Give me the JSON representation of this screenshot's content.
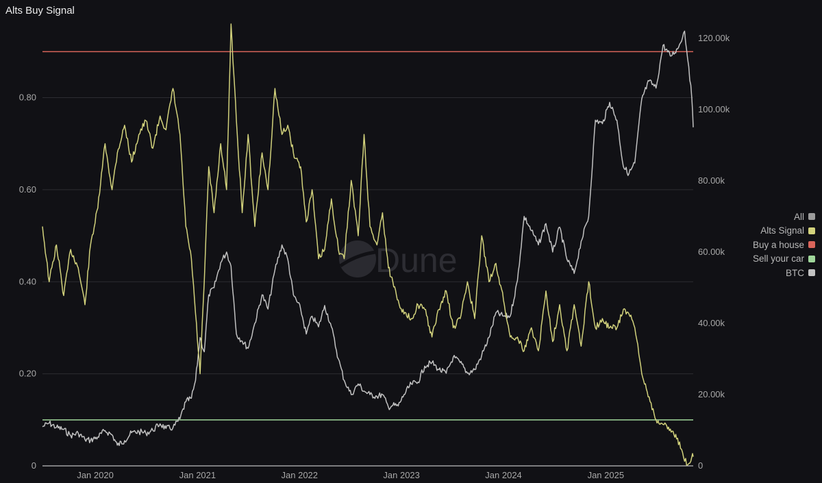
{
  "title": "Alts Buy Signal",
  "colors": {
    "background": "#111115",
    "alts_signal": "#d2d27c",
    "btc": "#c2c2c2",
    "buy_a_house": "#d9645a",
    "sell_your_car": "#9fd69a",
    "all": "#9c9c9c",
    "grid": "#2c2c31"
  },
  "watermark": "Dune",
  "legend": [
    {
      "label": "All",
      "color": "#9c9c9c"
    },
    {
      "label": "Alts Signal",
      "color": "#d2d27c"
    },
    {
      "label": "Buy a house",
      "color": "#d9645a"
    },
    {
      "label": "Sell your car",
      "color": "#9fd69a"
    },
    {
      "label": "BTC",
      "color": "#c2c2c2"
    }
  ],
  "chart_data": {
    "type": "line",
    "title": "Alts Buy Signal",
    "legend_position": "right",
    "grid": true,
    "x_tick_labels": [
      "Jan 2020",
      "Jan 2021",
      "Jan 2022",
      "Jan 2023",
      "Jan 2024",
      "Jan 2025"
    ],
    "x_range": [
      "2019-06-26",
      "2025-11-10"
    ],
    "y_left": {
      "range": [
        0,
        0.96
      ],
      "ticks": [
        0,
        0.2,
        0.4,
        0.6,
        0.8
      ],
      "tick_labels": [
        "0",
        "0.20",
        "0.40",
        "0.60",
        "0.80"
      ]
    },
    "y_right": {
      "range": [
        0,
        124000
      ],
      "ticks": [
        0,
        20000,
        40000,
        60000,
        80000,
        100000,
        120000
      ],
      "tick_labels": [
        "0",
        "20.00k",
        "40.00k",
        "60.00k",
        "80.00k",
        "100.00k",
        "120.00k"
      ]
    },
    "thresholds": [
      {
        "name": "Buy a house",
        "value": 0.9,
        "axis": "left"
      },
      {
        "name": "Sell your car",
        "value": 0.1,
        "axis": "left"
      }
    ],
    "series": [
      {
        "name": "Alts Signal",
        "axis": "left",
        "x": [
          "2019-06-26",
          "2019-07-20",
          "2019-08-15",
          "2019-09-10",
          "2019-10-05",
          "2019-11-01",
          "2019-11-25",
          "2019-12-15",
          "2020-01-10",
          "2020-02-05",
          "2020-03-01",
          "2020-03-20",
          "2020-04-15",
          "2020-05-10",
          "2020-06-05",
          "2020-06-30",
          "2020-07-25",
          "2020-08-20",
          "2020-09-10",
          "2020-10-05",
          "2020-10-30",
          "2020-11-20",
          "2020-12-10",
          "2020-12-25",
          "2021-01-10",
          "2021-01-25",
          "2021-02-10",
          "2021-03-01",
          "2021-03-25",
          "2021-04-15",
          "2021-05-01",
          "2021-05-20",
          "2021-06-10",
          "2021-07-01",
          "2021-07-25",
          "2021-08-20",
          "2021-09-10",
          "2021-10-05",
          "2021-10-30",
          "2021-11-20",
          "2021-12-10",
          "2022-01-05",
          "2022-01-25",
          "2022-02-15",
          "2022-03-10",
          "2022-04-01",
          "2022-04-25",
          "2022-05-20",
          "2022-06-10",
          "2022-07-05",
          "2022-07-30",
          "2022-08-20",
          "2022-09-10",
          "2022-10-05",
          "2022-10-25",
          "2022-11-15",
          "2022-12-01",
          "2022-12-20",
          "2023-01-10",
          "2023-02-05",
          "2023-03-01",
          "2023-03-25",
          "2023-04-20",
          "2023-05-15",
          "2023-06-10",
          "2023-07-05",
          "2023-07-30",
          "2023-08-25",
          "2023-09-20",
          "2023-10-15",
          "2023-11-10",
          "2023-12-05",
          "2024-01-01",
          "2024-01-25",
          "2024-02-20",
          "2024-03-15",
          "2024-04-10",
          "2024-05-05",
          "2024-06-01",
          "2024-06-25",
          "2024-07-20",
          "2024-08-15",
          "2024-09-10",
          "2024-10-05",
          "2024-11-01",
          "2024-11-25",
          "2024-12-20",
          "2025-01-15",
          "2025-02-10",
          "2025-03-05",
          "2025-03-25",
          "2025-04-15",
          "2025-05-10",
          "2025-06-05",
          "2025-06-30",
          "2025-07-25",
          "2025-08-20",
          "2025-09-15",
          "2025-10-10",
          "2025-10-25",
          "2025-11-05",
          "2025-11-10"
        ],
        "values": [
          0.52,
          0.4,
          0.48,
          0.37,
          0.47,
          0.43,
          0.35,
          0.48,
          0.56,
          0.7,
          0.6,
          0.68,
          0.74,
          0.66,
          0.72,
          0.75,
          0.69,
          0.76,
          0.73,
          0.82,
          0.72,
          0.52,
          0.45,
          0.33,
          0.2,
          0.4,
          0.65,
          0.55,
          0.7,
          0.6,
          0.96,
          0.75,
          0.55,
          0.72,
          0.52,
          0.68,
          0.6,
          0.82,
          0.72,
          0.74,
          0.68,
          0.65,
          0.53,
          0.6,
          0.45,
          0.47,
          0.58,
          0.47,
          0.45,
          0.62,
          0.5,
          0.72,
          0.52,
          0.48,
          0.55,
          0.43,
          0.4,
          0.36,
          0.33,
          0.32,
          0.35,
          0.34,
          0.28,
          0.34,
          0.38,
          0.3,
          0.32,
          0.4,
          0.32,
          0.5,
          0.4,
          0.44,
          0.36,
          0.28,
          0.28,
          0.25,
          0.3,
          0.25,
          0.38,
          0.27,
          0.35,
          0.25,
          0.35,
          0.26,
          0.4,
          0.3,
          0.32,
          0.3,
          0.3,
          0.34,
          0.33,
          0.3,
          0.2,
          0.15,
          0.1,
          0.09,
          0.08,
          0.06,
          0.01,
          0.005,
          0.02,
          0.02
        ]
      },
      {
        "name": "BTC",
        "axis": "right",
        "x": [
          "2019-06-26",
          "2019-07-20",
          "2019-08-15",
          "2019-09-10",
          "2019-10-05",
          "2019-11-01",
          "2019-11-25",
          "2019-12-15",
          "2020-01-10",
          "2020-02-05",
          "2020-03-01",
          "2020-03-20",
          "2020-04-15",
          "2020-05-10",
          "2020-06-05",
          "2020-06-30",
          "2020-07-25",
          "2020-08-20",
          "2020-09-10",
          "2020-10-05",
          "2020-10-30",
          "2020-11-20",
          "2020-12-10",
          "2020-12-25",
          "2021-01-10",
          "2021-01-25",
          "2021-02-10",
          "2021-03-01",
          "2021-03-25",
          "2021-04-15",
          "2021-05-01",
          "2021-05-20",
          "2021-06-10",
          "2021-07-01",
          "2021-07-25",
          "2021-08-20",
          "2021-09-10",
          "2021-10-05",
          "2021-10-30",
          "2021-11-20",
          "2021-12-10",
          "2022-01-05",
          "2022-01-25",
          "2022-02-15",
          "2022-03-10",
          "2022-04-01",
          "2022-04-25",
          "2022-05-20",
          "2022-06-10",
          "2022-07-05",
          "2022-07-30",
          "2022-08-20",
          "2022-09-10",
          "2022-10-05",
          "2022-10-25",
          "2022-11-15",
          "2022-12-01",
          "2022-12-20",
          "2023-01-10",
          "2023-02-05",
          "2023-03-01",
          "2023-03-25",
          "2023-04-20",
          "2023-05-15",
          "2023-06-10",
          "2023-07-05",
          "2023-07-30",
          "2023-08-25",
          "2023-09-20",
          "2023-10-15",
          "2023-11-10",
          "2023-12-05",
          "2024-01-01",
          "2024-01-25",
          "2024-02-20",
          "2024-03-15",
          "2024-04-10",
          "2024-05-05",
          "2024-06-01",
          "2024-06-25",
          "2024-07-20",
          "2024-08-15",
          "2024-09-10",
          "2024-10-05",
          "2024-11-01",
          "2024-11-25",
          "2024-12-20",
          "2025-01-15",
          "2025-02-10",
          "2025-03-05",
          "2025-03-25",
          "2025-04-15",
          "2025-05-10",
          "2025-06-05",
          "2025-06-30",
          "2025-07-25",
          "2025-08-20",
          "2025-09-15",
          "2025-10-10",
          "2025-10-25",
          "2025-11-05",
          "2025-11-10"
        ],
        "values": [
          11000,
          12000,
          10800,
          10200,
          8500,
          9200,
          7400,
          7200,
          8100,
          9900,
          8700,
          5800,
          7100,
          9300,
          9600,
          9200,
          10000,
          11800,
          10500,
          10700,
          13200,
          18000,
          19000,
          24000,
          36000,
          32000,
          48000,
          50000,
          57000,
          60000,
          56000,
          37000,
          35000,
          33000,
          40000,
          48000,
          44000,
          55000,
          62000,
          58000,
          48000,
          44000,
          37000,
          42000,
          39000,
          45000,
          39000,
          30000,
          24000,
          20000,
          23000,
          21000,
          20000,
          19500,
          20000,
          16500,
          17000,
          16800,
          20000,
          23000,
          23500,
          28000,
          29000,
          27000,
          26000,
          30500,
          29000,
          26000,
          27000,
          31000,
          36000,
          43000,
          42000,
          42000,
          52000,
          70000,
          66000,
          62000,
          68000,
          60000,
          67000,
          58000,
          54000,
          63000,
          70000,
          97000,
          96000,
          102000,
          97000,
          84000,
          82000,
          85000,
          103000,
          108000,
          106000,
          118000,
          115000,
          117000,
          122000,
          112000,
          103000,
          95000
        ]
      }
    ]
  }
}
